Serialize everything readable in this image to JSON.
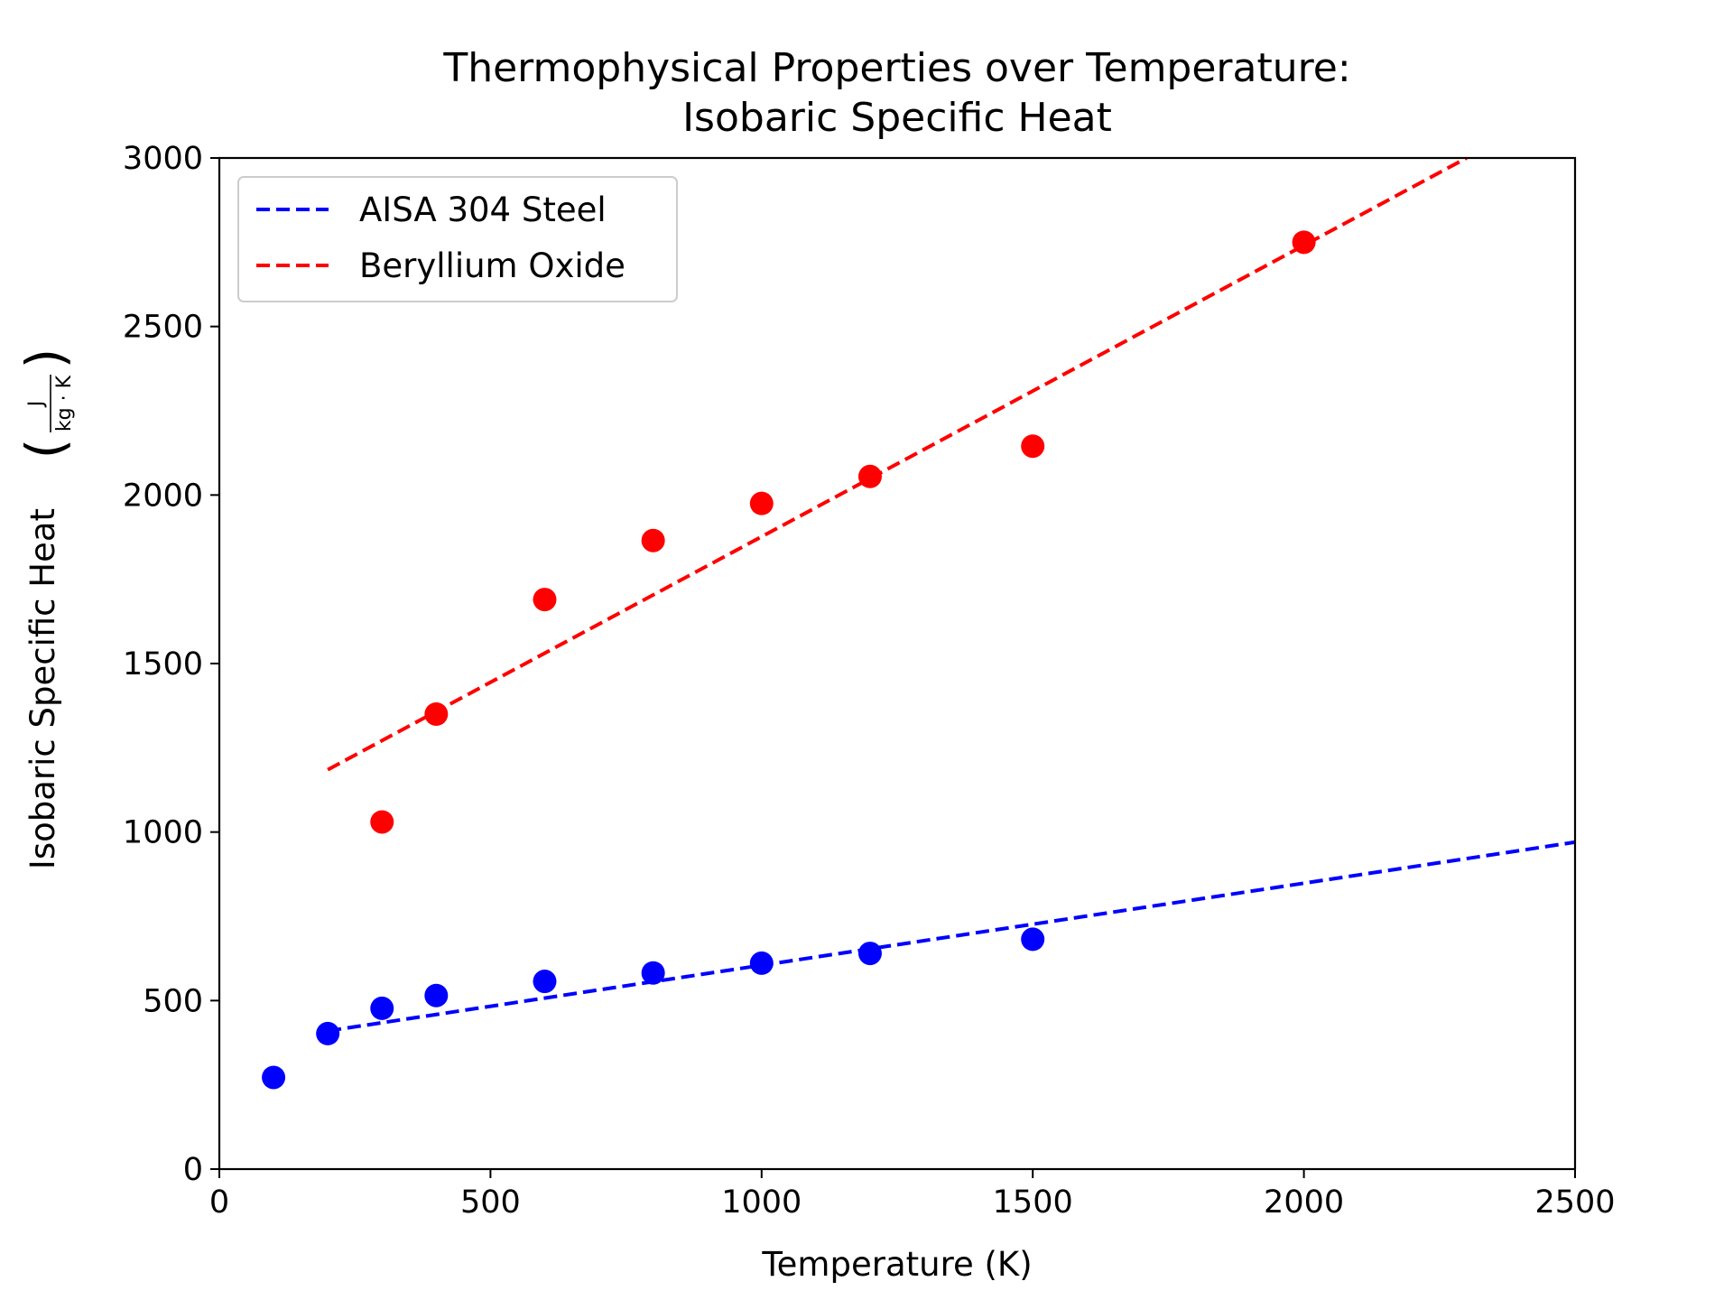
{
  "chart_data": {
    "type": "scatter",
    "title_lines": [
      "Thermophysical Properties over Temperature:",
      "Isobaric Specific Heat"
    ],
    "xlabel": "Temperature (K)",
    "ylabel": "Isobaric Specific Heat",
    "ylabel_unit_numerator": "J",
    "ylabel_unit_denominator": "kg · K",
    "xlim": [
      0,
      2500
    ],
    "ylim": [
      0,
      3000
    ],
    "x_ticks": [
      0,
      500,
      1000,
      1500,
      2000,
      2500
    ],
    "y_ticks": [
      0,
      500,
      1000,
      1500,
      2000,
      2500,
      3000
    ],
    "grid": false,
    "legend_position": "upper-left",
    "series": [
      {
        "name": "AISA 304 Steel",
        "color": "#0000ff",
        "points": [
          [
            100,
            272
          ],
          [
            200,
            402
          ],
          [
            300,
            477
          ],
          [
            400,
            515
          ],
          [
            600,
            557
          ],
          [
            800,
            582
          ],
          [
            1000,
            611
          ],
          [
            1200,
            640
          ],
          [
            1500,
            682
          ]
        ],
        "fit_line": [
          [
            200,
            410
          ],
          [
            2500,
            970
          ]
        ]
      },
      {
        "name": "Beryllium Oxide",
        "color": "#ff0000",
        "points": [
          [
            300,
            1030
          ],
          [
            400,
            1350
          ],
          [
            600,
            1690
          ],
          [
            800,
            1865
          ],
          [
            1000,
            1975
          ],
          [
            1200,
            2055
          ],
          [
            1500,
            2145
          ],
          [
            2000,
            2750
          ]
        ],
        "fit_line": [
          [
            200,
            1185
          ],
          [
            2300,
            3000
          ]
        ]
      }
    ]
  }
}
